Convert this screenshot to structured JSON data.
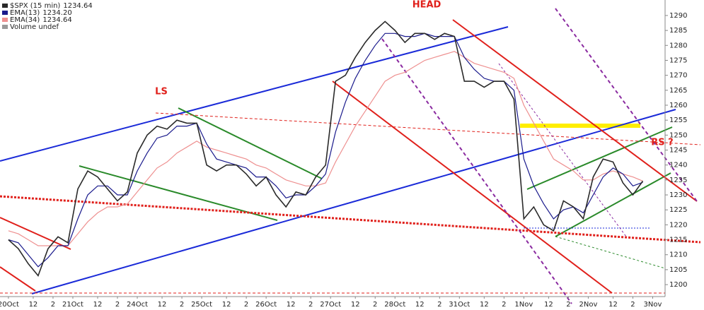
{
  "chart_data": {
    "type": "line",
    "legend": [
      {
        "name": "$SPX (15 min)",
        "last": "1234.64"
      },
      {
        "name": "EMA(13)",
        "last": "1234.20"
      },
      {
        "name": "EMA(34)",
        "last": "1234.64"
      },
      {
        "name": "Volume undef"
      }
    ],
    "annotations": [
      "HEAD",
      "LS",
      "RS ?"
    ],
    "x": [
      0,
      4,
      8,
      12,
      16,
      20,
      24,
      28,
      32,
      36,
      40,
      44,
      48,
      52,
      56,
      60,
      64,
      68,
      72,
      76,
      80,
      84,
      88,
      92,
      96,
      100,
      104,
      108,
      112,
      116,
      120,
      124,
      128,
      132,
      136,
      140,
      144,
      148,
      152,
      156,
      160,
      164,
      168,
      172,
      176,
      180,
      184,
      188,
      192,
      196,
      200,
      204,
      208,
      212,
      216,
      220,
      224,
      228,
      232,
      236,
      240,
      244,
      248,
      252,
      256
    ],
    "series": [
      {
        "name": "$SPX (15 min)",
        "color": "#2a2a2a",
        "values": [
          1215,
          1212,
          1207,
          1203,
          1212,
          1216,
          1214,
          1232,
          1238,
          1236,
          1232,
          1228,
          1231,
          1244,
          1250,
          1253,
          1252,
          1255,
          1254,
          1254,
          1240,
          1238,
          1240,
          1240,
          1237,
          1233,
          1236,
          1230,
          1226,
          1231,
          1230,
          1236,
          1240,
          1268,
          1270,
          1276,
          1281,
          1285,
          1288,
          1285,
          1281,
          1284,
          1284,
          1282,
          1284,
          1283,
          1268,
          1268,
          1266,
          1268,
          1268,
          1262,
          1222,
          1226,
          1220,
          1218,
          1228,
          1226,
          1222,
          1236,
          1242,
          1241,
          1234,
          1230,
          1234.64
        ]
      },
      {
        "name": "EMA(13)",
        "color": "#1a1a8c",
        "values": [
          1215,
          1214,
          1210,
          1206,
          1209,
          1213,
          1213,
          1222,
          1230,
          1233,
          1233,
          1230,
          1230,
          1238,
          1244,
          1249,
          1250,
          1253,
          1253,
          1254,
          1247,
          1242,
          1241,
          1240,
          1239,
          1236,
          1236,
          1233,
          1229,
          1230,
          1230,
          1233,
          1237,
          1251,
          1261,
          1269,
          1275,
          1280,
          1284,
          1284,
          1283,
          1283,
          1284,
          1283,
          1283,
          1283,
          1276,
          1272,
          1269,
          1268,
          1268,
          1265,
          1242,
          1233,
          1227,
          1222,
          1225,
          1226,
          1224,
          1230,
          1236,
          1239,
          1237,
          1233,
          1234.2
        ]
      },
      {
        "name": "EMA(34)",
        "color": "#ee9090",
        "values": [
          1218,
          1217,
          1215,
          1213,
          1213,
          1213,
          1213,
          1217,
          1221,
          1224,
          1226,
          1226,
          1227,
          1231,
          1235,
          1239,
          1241,
          1244,
          1246,
          1248,
          1246,
          1245,
          1244,
          1243,
          1242,
          1240,
          1239,
          1237,
          1235,
          1234,
          1233,
          1233,
          1234,
          1241,
          1247,
          1253,
          1258,
          1263,
          1268,
          1270,
          1271,
          1273,
          1275,
          1276,
          1277,
          1278,
          1276,
          1274,
          1273,
          1272,
          1271,
          1269,
          1260,
          1254,
          1248,
          1242,
          1240,
          1238,
          1235,
          1235,
          1237,
          1238,
          1237,
          1236,
          1234.64
        ]
      }
    ],
    "xlim": [
      -3.4,
      265
    ],
    "xticks": [
      {
        "value": 0,
        "label": "20Oct"
      },
      {
        "value": 10,
        "label": "12"
      },
      {
        "value": 18,
        "label": "2"
      },
      {
        "value": 26,
        "label": "21Oct"
      },
      {
        "value": 36,
        "label": "12"
      },
      {
        "value": 44,
        "label": "2"
      },
      {
        "value": 52,
        "label": "24Oct"
      },
      {
        "value": 62,
        "label": "12"
      },
      {
        "value": 70,
        "label": "2"
      },
      {
        "value": 78,
        "label": "25Oct"
      },
      {
        "value": 88,
        "label": "12"
      },
      {
        "value": 96,
        "label": "2"
      },
      {
        "value": 104,
        "label": "26Oct"
      },
      {
        "value": 114,
        "label": "12"
      },
      {
        "value": 122,
        "label": "2"
      },
      {
        "value": 130,
        "label": "27Oct"
      },
      {
        "value": 140,
        "label": "12"
      },
      {
        "value": 148,
        "label": "2"
      },
      {
        "value": 156,
        "label": "28Oct"
      },
      {
        "value": 166,
        "label": "12"
      },
      {
        "value": 174,
        "label": "2"
      },
      {
        "value": 182,
        "label": "31Oct"
      },
      {
        "value": 192,
        "label": "12"
      },
      {
        "value": 200,
        "label": "2"
      },
      {
        "value": 208,
        "label": "1Nov"
      },
      {
        "value": 218,
        "label": "12"
      },
      {
        "value": 226,
        "label": "2"
      },
      {
        "value": 234,
        "label": "2Nov"
      },
      {
        "value": 244,
        "label": "12"
      },
      {
        "value": 252,
        "label": "2"
      },
      {
        "value": 260,
        "label": "3Nov"
      }
    ],
    "ylim": [
      1196,
      1294
    ],
    "yticks": [
      1200,
      1205,
      1210,
      1215,
      1220,
      1225,
      1230,
      1235,
      1240,
      1245,
      1250,
      1255,
      1260,
      1265,
      1270,
      1275,
      1280,
      1285,
      1290
    ]
  }
}
